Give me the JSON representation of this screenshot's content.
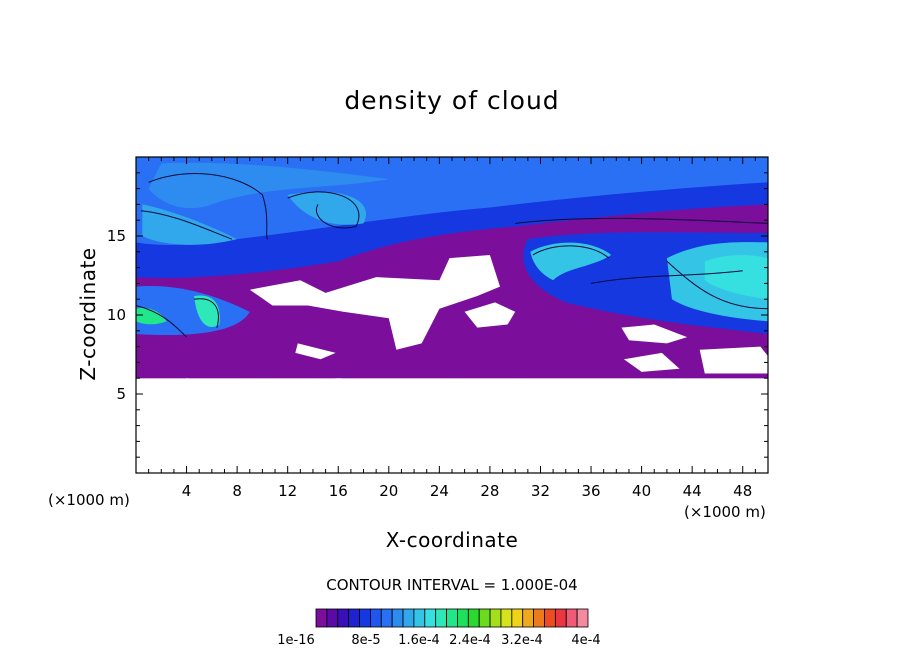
{
  "chart_data": {
    "type": "heatmap",
    "title": "density of cloud",
    "xlabel": "X-coordinate",
    "ylabel": "Z-coordinate",
    "x_unit_label": "(×1000 m)",
    "y_unit_label": "(×1000 m)",
    "xlim": [
      0,
      50
    ],
    "ylim": [
      0,
      20
    ],
    "x_ticks": [
      4,
      8,
      12,
      16,
      20,
      24,
      28,
      32,
      36,
      40,
      44,
      48
    ],
    "y_ticks": [
      5,
      10,
      15
    ],
    "contour_interval_text": "CONTOUR INTERVAL = 1.000E-04",
    "colorbar": {
      "labels": [
        "1e-16",
        "8e-5",
        "1.6e-4",
        "2.4e-4",
        "3.2e-4",
        "4e-4"
      ],
      "colors": [
        "#7b0f9c",
        "#5a0aa8",
        "#3a0fb8",
        "#1f22d0",
        "#1538e0",
        "#1f56f0",
        "#2a70f5",
        "#2e8cf0",
        "#31a7ec",
        "#34c4e6",
        "#36dfe0",
        "#2ee8b8",
        "#22e68a",
        "#1ee05a",
        "#2bd82e",
        "#6bdc1c",
        "#a4e01a",
        "#d8e21a",
        "#f0d21a",
        "#f0a81c",
        "#ee7a1e",
        "#ec4e22",
        "#ea3640",
        "#ee5a78",
        "#f48aa0"
      ]
    }
  }
}
